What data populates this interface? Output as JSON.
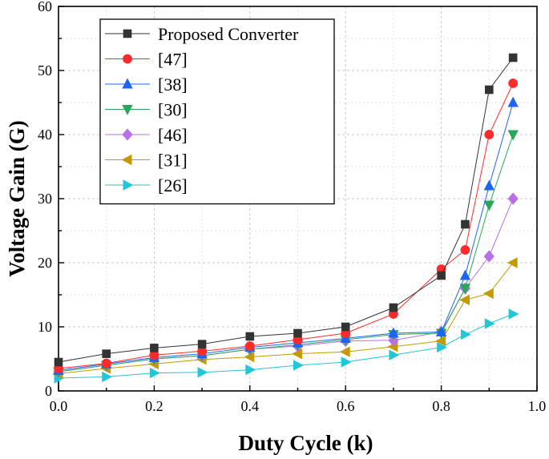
{
  "chart_data": {
    "type": "line",
    "title": "",
    "xlabel": "Duty Cycle (k)",
    "ylabel": "Voltage Gain (G)",
    "xlim": [
      0.0,
      1.0
    ],
    "ylim": [
      0,
      60
    ],
    "x_ticks": [
      "0.0",
      "0.2",
      "0.4",
      "0.6",
      "0.8",
      "1.0"
    ],
    "y_ticks": [
      "0",
      "10",
      "20",
      "30",
      "40",
      "50",
      "60"
    ],
    "grid": true,
    "legend_position": "top-left",
    "series": [
      {
        "name": "Proposed Converter",
        "color": "#333333",
        "marker": "square",
        "x": [
          0.0,
          0.1,
          0.2,
          0.3,
          0.4,
          0.5,
          0.6,
          0.7,
          0.8,
          0.85,
          0.9,
          0.95
        ],
        "y": [
          4.5,
          5.8,
          6.7,
          7.3,
          8.5,
          9.0,
          10.0,
          13.0,
          18.0,
          26.0,
          47.0,
          52.0
        ]
      },
      {
        "name": "[47]",
        "color": "#ff2a2a",
        "marker": "circle",
        "x": [
          0.0,
          0.1,
          0.2,
          0.3,
          0.4,
          0.5,
          0.6,
          0.7,
          0.8,
          0.85,
          0.9,
          0.95
        ],
        "y": [
          3.5,
          4.3,
          5.6,
          6.2,
          7.0,
          8.0,
          9.0,
          12.0,
          19.0,
          22.0,
          40.0,
          48.0
        ]
      },
      {
        "name": "[38]",
        "color": "#1f64f2",
        "marker": "triangle-up",
        "x": [
          0.0,
          0.1,
          0.2,
          0.3,
          0.4,
          0.5,
          0.6,
          0.7,
          0.8,
          0.85,
          0.9,
          0.95
        ],
        "y": [
          3.2,
          4.2,
          5.2,
          5.8,
          6.8,
          7.5,
          8.2,
          9.0,
          9.2,
          18.0,
          32.0,
          45.0
        ]
      },
      {
        "name": "[30]",
        "color": "#2aa55a",
        "marker": "triangle-down",
        "x": [
          0.0,
          0.1,
          0.2,
          0.3,
          0.4,
          0.5,
          0.6,
          0.7,
          0.8,
          0.85,
          0.9,
          0.95
        ],
        "y": [
          3.0,
          4.0,
          5.0,
          5.5,
          6.5,
          7.2,
          8.0,
          8.8,
          9.0,
          16.0,
          29.0,
          40.0
        ]
      },
      {
        "name": "[46]",
        "color": "#b870e8",
        "marker": "diamond",
        "x": [
          0.0,
          0.1,
          0.2,
          0.3,
          0.4,
          0.5,
          0.6,
          0.7,
          0.8,
          0.85,
          0.9,
          0.95
        ],
        "y": [
          3.0,
          4.0,
          5.0,
          5.5,
          6.5,
          7.0,
          7.8,
          7.9,
          9.2,
          16.0,
          21.0,
          30.0
        ]
      },
      {
        "name": "[31]",
        "color": "#c49a00",
        "marker": "triangle-left",
        "x": [
          0.0,
          0.1,
          0.2,
          0.3,
          0.4,
          0.5,
          0.6,
          0.7,
          0.8,
          0.85,
          0.9,
          0.95
        ],
        "y": [
          2.7,
          3.5,
          4.2,
          4.9,
          5.3,
          5.8,
          6.1,
          6.9,
          7.8,
          14.2,
          15.2,
          20.0
        ]
      },
      {
        "name": "[26]",
        "color": "#22c6d6",
        "marker": "triangle-right",
        "x": [
          0.0,
          0.1,
          0.2,
          0.3,
          0.4,
          0.5,
          0.6,
          0.7,
          0.8,
          0.85,
          0.9,
          0.95
        ],
        "y": [
          2.0,
          2.2,
          2.8,
          2.9,
          3.3,
          4.0,
          4.5,
          5.6,
          6.8,
          8.8,
          10.5,
          12.0
        ]
      }
    ]
  }
}
